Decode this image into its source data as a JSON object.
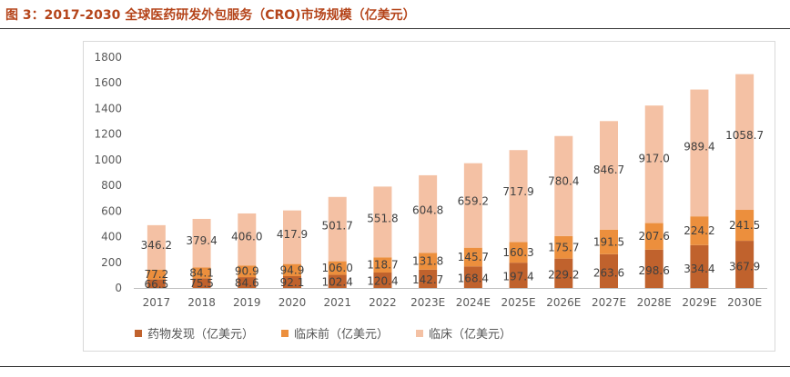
{
  "figure_title": "图 3：2017-2030 全球医药研发外包服务（CRO)市场规模（亿美元）",
  "chart_data": {
    "type": "bar",
    "stacked": true,
    "title": "",
    "xlabel": "",
    "ylabel": "",
    "ylim": [
      0,
      1800
    ],
    "yticks": [
      "0",
      "200",
      "400",
      "600",
      "800",
      "1000",
      "1200",
      "1400",
      "1600",
      "1800"
    ],
    "categories": [
      "2017",
      "2018",
      "2019",
      "2020",
      "2021",
      "2022",
      "2023E",
      "2024E",
      "2025E",
      "2026E",
      "2027E",
      "2028E",
      "2029E",
      "2030E"
    ],
    "grid": false,
    "legend_position": "bottom",
    "series": [
      {
        "name": "药物发现（亿美元）",
        "color": "#c0622d",
        "values": [
          66.5,
          75.5,
          84.6,
          92.1,
          102.4,
          120.4,
          142.7,
          168.4,
          197.4,
          229.2,
          263.6,
          298.6,
          334.4,
          367.9
        ],
        "labels": [
          "66.5",
          "75.5",
          "84.6",
          "92.1",
          "102.4",
          "120.4",
          "142.7",
          "168.4",
          "197.4",
          "229.2",
          "263.6",
          "298.6",
          "334.4",
          "367.9"
        ]
      },
      {
        "name": "临床前（亿美元）",
        "color": "#ec8f3d",
        "values": [
          77.2,
          84.1,
          90.9,
          94.9,
          106.0,
          118.7,
          131.8,
          145.7,
          160.3,
          175.7,
          191.5,
          207.6,
          224.2,
          241.5
        ],
        "labels": [
          "77.2",
          "84.1",
          "90.9",
          "94.9",
          "106.0",
          "118.7",
          "131.8",
          "145.7",
          "160.3",
          "175.7",
          "191.5",
          "207.6",
          "224.2",
          "241.5"
        ]
      },
      {
        "name": "临床（亿美元）",
        "color": "#f4c1a4",
        "values": [
          346.2,
          379.4,
          406.0,
          417.9,
          501.7,
          551.8,
          604.8,
          659.2,
          717.9,
          780.4,
          846.7,
          917.0,
          989.4,
          1058.7
        ],
        "labels": [
          "346.2",
          "379.4",
          "406.0",
          "417.9",
          "501.7",
          "551.8",
          "604.8",
          "659.2",
          "717.9",
          "780.4",
          "846.7",
          "917.0",
          "989.4",
          "1058.7"
        ]
      }
    ]
  }
}
